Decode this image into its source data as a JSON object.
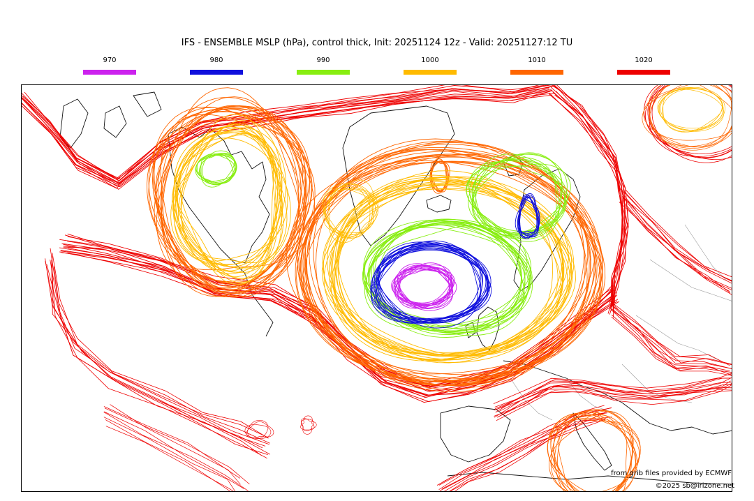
{
  "title": "IFS - ENSEMBLE MSLP (hPa), control thick, Init: 20251124 12z - Valid: 20251127:12 TU",
  "legend": [
    {
      "label": "970",
      "color": "#cc22ee"
    },
    {
      "label": "980",
      "color": "#1010dd"
    },
    {
      "label": "990",
      "color": "#88ee11"
    },
    {
      "label": "1000",
      "color": "#ffbb00"
    },
    {
      "label": "1010",
      "color": "#ff6600"
    },
    {
      "label": "1020",
      "color": "#ee0000"
    }
  ],
  "credit": "from grib files provided by ECMWF",
  "copyright": "©2025 sb@irizone.net"
}
